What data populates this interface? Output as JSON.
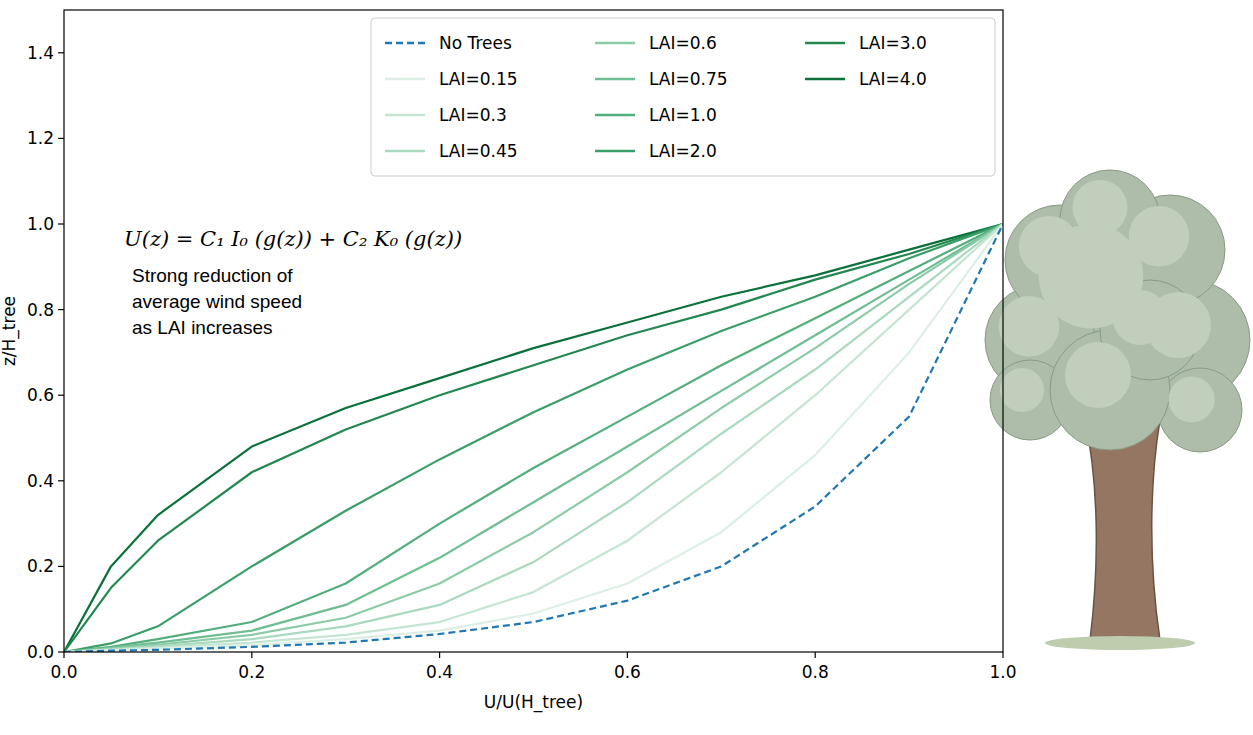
{
  "chart_data": {
    "type": "line",
    "x_label": "U/U(H_tree)",
    "y_label": "z/H_tree",
    "annotations": [
      {
        "text": "U(z) = C₁ I₀ (g(z)) + C₂ K₀ (g(z))"
      },
      {
        "text": "Strong reduction of\naverage wind speed\nas LAI increases"
      }
    ],
    "x": [
      0,
      0.05,
      0.1,
      0.2,
      0.3,
      0.4,
      0.5,
      0.6,
      0.7,
      0.8,
      0.9,
      1.0
    ],
    "series": [
      {
        "name": "No Trees",
        "color": "#1f77b4",
        "line_style": "dashed",
        "values": [
          0,
          0.003,
          0.005,
          0.012,
          0.022,
          0.042,
          0.07,
          0.12,
          0.2,
          0.34,
          0.55,
          1.0
        ]
      },
      {
        "name": "LAI=0.15",
        "color": "#dcefe4",
        "line_style": "solid",
        "values": [
          0,
          0.004,
          0.008,
          0.016,
          0.03,
          0.05,
          0.09,
          0.16,
          0.28,
          0.46,
          0.7,
          1.0
        ]
      },
      {
        "name": "LAI=0.3",
        "color": "#c4e5d2",
        "line_style": "solid",
        "values": [
          0,
          0.005,
          0.01,
          0.022,
          0.04,
          0.07,
          0.14,
          0.26,
          0.42,
          0.6,
          0.8,
          1.0
        ]
      },
      {
        "name": "LAI=0.45",
        "color": "#a9d9be",
        "line_style": "solid",
        "values": [
          0,
          0.006,
          0.013,
          0.03,
          0.06,
          0.11,
          0.21,
          0.35,
          0.51,
          0.66,
          0.83,
          1.0
        ]
      },
      {
        "name": "LAI=0.6",
        "color": "#8ccba8",
        "line_style": "solid",
        "values": [
          0,
          0.008,
          0.017,
          0.04,
          0.08,
          0.16,
          0.28,
          0.42,
          0.57,
          0.71,
          0.86,
          1.0
        ]
      },
      {
        "name": "LAI=0.75",
        "color": "#6fbd93",
        "line_style": "solid",
        "values": [
          0,
          0.01,
          0.022,
          0.05,
          0.11,
          0.22,
          0.35,
          0.48,
          0.61,
          0.74,
          0.87,
          1.0
        ]
      },
      {
        "name": "LAI=1.0",
        "color": "#52ae7c",
        "line_style": "solid",
        "values": [
          0,
          0.012,
          0.03,
          0.07,
          0.16,
          0.3,
          0.43,
          0.55,
          0.67,
          0.78,
          0.89,
          1.0
        ]
      },
      {
        "name": "LAI=2.0",
        "color": "#3a9e68",
        "line_style": "solid",
        "values": [
          0,
          0.02,
          0.06,
          0.2,
          0.33,
          0.45,
          0.56,
          0.66,
          0.75,
          0.83,
          0.92,
          1.0
        ]
      },
      {
        "name": "LAI=3.0",
        "color": "#22884f",
        "line_style": "solid",
        "values": [
          0,
          0.15,
          0.26,
          0.42,
          0.52,
          0.6,
          0.67,
          0.74,
          0.8,
          0.87,
          0.93,
          1.0
        ]
      },
      {
        "name": "LAI=4.0",
        "color": "#0b713a",
        "line_style": "solid",
        "values": [
          0,
          0.2,
          0.32,
          0.48,
          0.57,
          0.64,
          0.71,
          0.77,
          0.83,
          0.88,
          0.94,
          1.0
        ]
      }
    ],
    "xlim": [
      0,
      1
    ],
    "ylim": [
      0,
      1.5
    ],
    "xticks": [
      {
        "value": 0,
        "label": "0.0"
      },
      0.2,
      0.4,
      0.6,
      0.8,
      {
        "value": 1,
        "label": "1.0"
      }
    ],
    "yticks": [
      {
        "value": 0,
        "label": "0.0"
      },
      0.2,
      0.4,
      0.6,
      0.8,
      {
        "value": 1,
        "label": "1.0"
      },
      1.2,
      1.4
    ],
    "grid": false,
    "legend": "upper right"
  }
}
